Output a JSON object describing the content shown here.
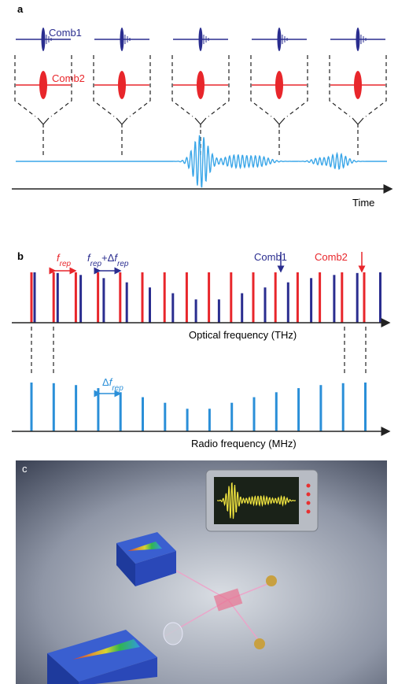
{
  "panel_a": {
    "label": "a",
    "comb1": "Comb1",
    "comb2": "Comb2",
    "axis_label": "Time"
  },
  "panel_b": {
    "label": "b",
    "frep": [
      {
        "text": "f",
        "sub": false
      },
      {
        "text": "rep",
        "sub": true
      }
    ],
    "frep_plus_delta": [
      {
        "text": "f",
        "sub": false
      },
      {
        "text": "rep",
        "sub": true
      },
      {
        "text": "+Δ",
        "sub": false
      },
      {
        "text": "f",
        "sub": false
      },
      {
        "text": "rep",
        "sub": true
      }
    ],
    "comb1": "Comb1",
    "comb2": "Comb2",
    "optical_axis_label": "Optical frequency (THz)",
    "delta_frep": [
      {
        "text": "Δ",
        "sub": false
      },
      {
        "text": "f",
        "sub": false
      },
      {
        "text": "rep",
        "sub": true
      }
    ],
    "radio_axis_label": "Radio frequency (MHz)"
  },
  "panel_c": {
    "label": "c"
  }
}
